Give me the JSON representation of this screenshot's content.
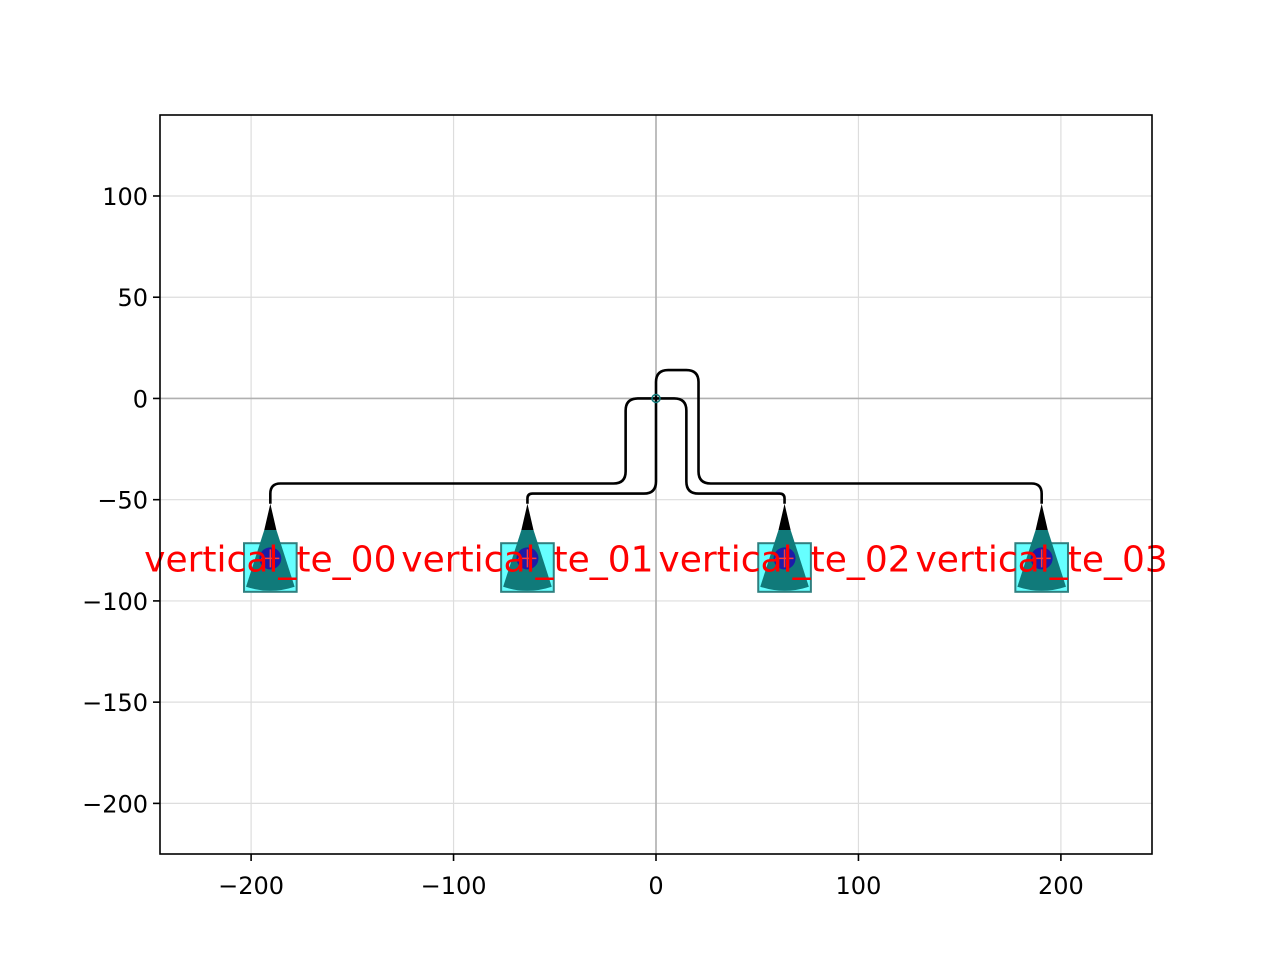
{
  "chart_data": {
    "type": "layout",
    "title": "",
    "xlabel": "",
    "ylabel": "",
    "xlim": [
      -245,
      245
    ],
    "ylim": [
      -225,
      140
    ],
    "x_ticks": [
      -200,
      -100,
      0,
      100,
      200
    ],
    "y_ticks": [
      100,
      50,
      0,
      -50,
      -100,
      -150,
      -200
    ],
    "x_tick_labels": [
      "−200",
      "−100",
      "0",
      "100",
      "200"
    ],
    "y_tick_labels": [
      "100",
      "50",
      "0",
      "−50",
      "−100",
      "−150",
      "−200"
    ],
    "grid": true,
    "origin_axes": true,
    "grating_couplers": [
      {
        "name": "vertical_te_00",
        "x": -190.5,
        "y": -79
      },
      {
        "name": "vertical_te_01",
        "x": -63.5,
        "y": -79
      },
      {
        "name": "vertical_te_02",
        "x": 63.5,
        "y": -79
      },
      {
        "name": "vertical_te_03",
        "x": 190.5,
        "y": -79
      }
    ],
    "routes": [
      {
        "points": [
          [
            -190.5,
            -52
          ],
          [
            -190.5,
            -42
          ],
          [
            -15,
            -42
          ],
          [
            -15,
            0
          ],
          [
            0,
            0
          ]
        ]
      },
      {
        "points": [
          [
            -63.5,
            -52
          ],
          [
            -63.5,
            -47
          ],
          [
            0,
            -47
          ],
          [
            0,
            0
          ]
        ]
      },
      {
        "points": [
          [
            63.5,
            -52
          ],
          [
            63.5,
            -47
          ],
          [
            15,
            -47
          ],
          [
            15,
            0
          ],
          [
            0,
            0
          ]
        ]
      },
      {
        "points": [
          [
            190.5,
            -52
          ],
          [
            190.5,
            -42
          ],
          [
            21,
            -42
          ],
          [
            21,
            14
          ],
          [
            0,
            14
          ],
          [
            0,
            0
          ]
        ]
      }
    ],
    "colors": {
      "waveguide": "#000000",
      "pad_fill": "#66ffff",
      "pad_stroke": "#2f7f7f",
      "taper": "#000000",
      "grating": "#107a7a",
      "port_marker": "#1c1ca8",
      "label": "#ff0000",
      "grid": "#dddddd",
      "origin_axis": "#b0b0b0"
    }
  }
}
